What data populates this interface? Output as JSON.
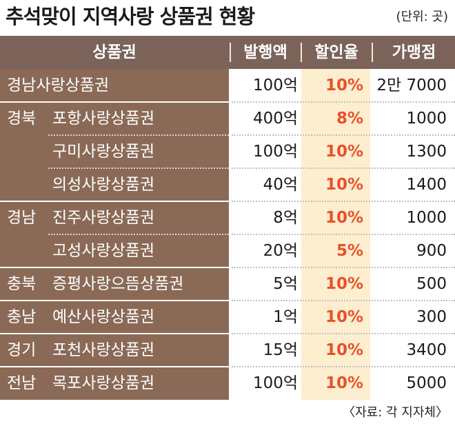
{
  "title": "추석맞이 지역사랑 상품권 현황",
  "unit": "(단위: 곳)",
  "headers": [
    "상품권",
    "발행액",
    "할인율",
    "가맹점"
  ],
  "rows": [
    {
      "prov": "경남사랑상품권",
      "name": "",
      "issue": "100억",
      "rate": "10%",
      "stores": "2만 7000"
    },
    {
      "prov": "경북",
      "name": "포항사랑상품권",
      "issue": "400억",
      "rate": "8%",
      "stores": "1000"
    },
    {
      "prov": "",
      "name": "구미사랑상품권",
      "issue": "100억",
      "rate": "10%",
      "stores": "1300"
    },
    {
      "prov": "",
      "name": "의성사랑상품권",
      "issue": "40억",
      "rate": "10%",
      "stores": "1400"
    },
    {
      "prov": "경남",
      "name": "진주사랑상품권",
      "issue": "8억",
      "rate": "10%",
      "stores": "1000"
    },
    {
      "prov": "",
      "name": "고성사랑상품권",
      "issue": "20억",
      "rate": "5%",
      "stores": "900"
    },
    {
      "prov": "충북",
      "name": "증평사랑으뜸상품권",
      "issue": "5억",
      "rate": "10%",
      "stores": "500"
    },
    {
      "prov": "충남",
      "name": "예산사랑상품권",
      "issue": "1억",
      "rate": "10%",
      "stores": "300"
    },
    {
      "prov": "경기",
      "name": "포천사랑상품권",
      "issue": "15억",
      "rate": "10%",
      "stores": "3400"
    },
    {
      "prov": "전남",
      "name": "목포사랑상품권",
      "issue": "100억",
      "rate": "10%",
      "stores": "5000"
    }
  ],
  "source": "〈자료: 각 지자체〉",
  "colors": {
    "header_bg": "#7b6359",
    "name_bg": "#8a6a56",
    "rate_bg": "#fdeed0",
    "rate_text": "#e8512a"
  }
}
